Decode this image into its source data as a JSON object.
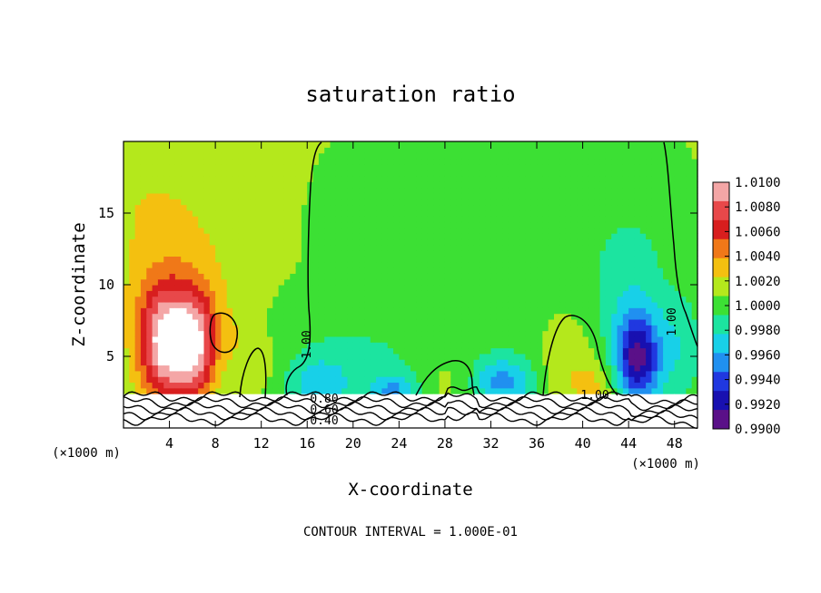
{
  "chart_data": {
    "type": "heatmap",
    "title": "saturation ratio",
    "xlabel": "X-coordinate",
    "ylabel": "Z-coordinate",
    "x_unit_left": "(×1000 m)",
    "x_unit_right": "(×1000 m)",
    "xlim": [
      0,
      50
    ],
    "ylim": [
      0,
      20
    ],
    "x_ticks": [
      4,
      8,
      12,
      16,
      20,
      24,
      28,
      32,
      36,
      40,
      44,
      48
    ],
    "y_ticks": [
      5,
      10,
      15
    ],
    "colorbar": {
      "min": 0.99,
      "max": 1.01,
      "labels": [
        "1.0100",
        "1.0080",
        "1.0060",
        "1.0040",
        "1.0020",
        "1.0000",
        "0.9980",
        "0.9960",
        "0.9940",
        "0.9920",
        "0.9900"
      ],
      "colors": [
        "#f4a6a6",
        "#e8484a",
        "#d81e1e",
        "#f07818",
        "#f4c010",
        "#b4e81c",
        "#3ce034",
        "#1ce4a0",
        "#18d0e8",
        "#2090f0",
        "#2038e0",
        "#1810b0",
        "#5a1088"
      ]
    },
    "contour_interval": "CONTOUR INTERVAL = 1.000E-01",
    "contour_labels": [
      "1.00",
      "1.00",
      "1.00",
      "0.80",
      "0.60",
      "0.40"
    ],
    "blobs": [
      {
        "x": 3.5,
        "z": 5.8,
        "sx": 1.6,
        "sz": 2.8,
        "amp": 0.009
      },
      {
        "x": 6.2,
        "z": 5.6,
        "sx": 1.3,
        "sz": 2.6,
        "amp": 0.008
      },
      {
        "x": 5.0,
        "z": 9.0,
        "sx": 3.2,
        "sz": 2.8,
        "amp": 0.002
      },
      {
        "x": 3.0,
        "z": 15.5,
        "sx": 6.0,
        "sz": 4.0,
        "amp": 0.0015
      },
      {
        "x": 9.5,
        "z": 6.0,
        "sx": 1.5,
        "sz": 1.4,
        "amp": 0.0012
      },
      {
        "x": 12.0,
        "z": 4.2,
        "sx": 1.2,
        "sz": 1.4,
        "amp": 0.001
      },
      {
        "x": 17.0,
        "z": 3.0,
        "sx": 2.0,
        "sz": 1.5,
        "amp": -0.003
      },
      {
        "x": 21.0,
        "z": 4.5,
        "sx": 5.5,
        "sz": 3.0,
        "amp": -0.0018
      },
      {
        "x": 23.5,
        "z": 2.6,
        "sx": 1.4,
        "sz": 0.8,
        "amp": -0.004
      },
      {
        "x": 28.5,
        "z": 3.5,
        "sx": 2.0,
        "sz": 1.5,
        "amp": 0.0012
      },
      {
        "x": 33.0,
        "z": 3.2,
        "sx": 2.0,
        "sz": 1.3,
        "amp": -0.005
      },
      {
        "x": 33.0,
        "z": 9.0,
        "sx": 4.0,
        "sz": 3.0,
        "amp": -0.001
      },
      {
        "x": 38.5,
        "z": 5.0,
        "sx": 1.8,
        "sz": 2.5,
        "amp": 0.0012
      },
      {
        "x": 41.0,
        "z": 3.0,
        "sx": 1.5,
        "sz": 1.2,
        "amp": 0.002
      },
      {
        "x": 44.8,
        "z": 4.8,
        "sx": 1.4,
        "sz": 2.2,
        "amp": -0.009
      },
      {
        "x": 44.0,
        "z": 10.0,
        "sx": 2.5,
        "sz": 4.0,
        "amp": -0.0025
      },
      {
        "x": 48.5,
        "z": 5.5,
        "sx": 1.5,
        "sz": 3.0,
        "amp": -0.0025
      },
      {
        "x": 28.0,
        "z": 15.0,
        "sx": 10.0,
        "sz": 3.0,
        "amp": -0.0004
      }
    ],
    "surface_lines_z": [
      2.2,
      1.8,
      1.4,
      1.0,
      0.6
    ]
  }
}
